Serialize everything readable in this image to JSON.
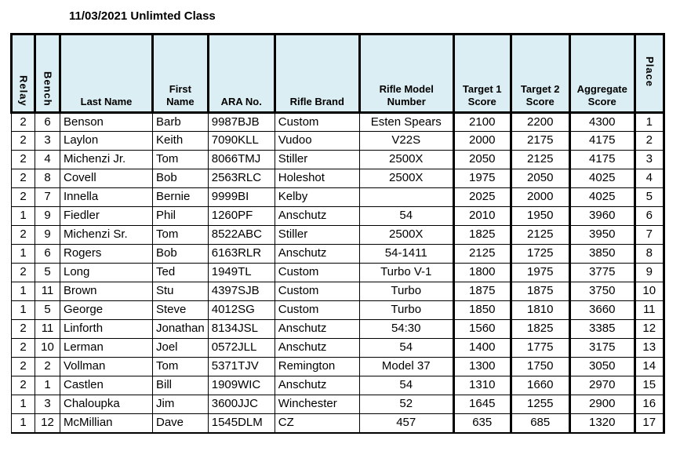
{
  "title": "11/03/2021 Unlimted Class",
  "colors": {
    "header_bg": "#daeef3",
    "border": "#000000",
    "text": "#000000",
    "page_bg": "#ffffff"
  },
  "chart_data": {
    "type": "table",
    "title": "11/03/2021 Unlimted Class",
    "columns": [
      "Relay",
      "Bench",
      "Last Name",
      "First\nName",
      "ARA No.",
      "Rifle Brand",
      "Rifle Model\nNumber",
      "Target 1\nScore",
      "Target 2\nScore",
      "Aggregate\nScore",
      "Place"
    ],
    "rows": [
      [
        "2",
        "6",
        "Benson",
        "Barb",
        "9987BJB",
        "Custom",
        "Esten Spears",
        "2100",
        "2200",
        "4300",
        "1"
      ],
      [
        "2",
        "3",
        "Laylon",
        "Keith",
        "7090KLL",
        "Vudoo",
        "V22S",
        "2000",
        "2175",
        "4175",
        "2"
      ],
      [
        "2",
        "4",
        "Michenzi Jr.",
        "Tom",
        "8066TMJ",
        "Stiller",
        "2500X",
        "2050",
        "2125",
        "4175",
        "3"
      ],
      [
        "2",
        "8",
        "Covell",
        "Bob",
        "2563RLC",
        "Holeshot",
        "2500X",
        "1975",
        "2050",
        "4025",
        "4"
      ],
      [
        "2",
        "7",
        "Innella",
        "Bernie",
        "9999BI",
        "Kelby",
        "",
        "2025",
        "2000",
        "4025",
        "5"
      ],
      [
        "1",
        "9",
        "Fiedler",
        "Phil",
        "1260PF",
        "Anschutz",
        "54",
        "2010",
        "1950",
        "3960",
        "6"
      ],
      [
        "2",
        "9",
        "Michenzi Sr.",
        "Tom",
        "8522ABC",
        "Stiller",
        "2500X",
        "1825",
        "2125",
        "3950",
        "7"
      ],
      [
        "1",
        "6",
        "Rogers",
        "Bob",
        "6163RLR",
        "Anschutz",
        "54-1411",
        "2125",
        "1725",
        "3850",
        "8"
      ],
      [
        "2",
        "5",
        "Long",
        "Ted",
        "1949TL",
        "Custom",
        "Turbo V-1",
        "1800",
        "1975",
        "3775",
        "9"
      ],
      [
        "1",
        "11",
        "Brown",
        "Stu",
        "4397SJB",
        "Custom",
        "Turbo",
        "1875",
        "1875",
        "3750",
        "10"
      ],
      [
        "1",
        "5",
        "George",
        "Steve",
        "4012SG",
        "Custom",
        "Turbo",
        "1850",
        "1810",
        "3660",
        "11"
      ],
      [
        "2",
        "11",
        "Linforth",
        "Jonathan",
        "8134JSL",
        "Anschutz",
        "54:30",
        "1560",
        "1825",
        "3385",
        "12"
      ],
      [
        "2",
        "10",
        "Lerman",
        "Joel",
        "0572JLL",
        "Anschutz",
        "54",
        "1400",
        "1775",
        "3175",
        "13"
      ],
      [
        "2",
        "2",
        "Vollman",
        "Tom",
        "5371TJV",
        "Remington",
        "Model 37",
        "1300",
        "1750",
        "3050",
        "14"
      ],
      [
        "2",
        "1",
        "Castlen",
        "Bill",
        "1909WIC",
        "Anschutz",
        "54",
        "1310",
        "1660",
        "2970",
        "15"
      ],
      [
        "1",
        "3",
        "Chaloupka",
        "Jim",
        "3600JJC",
        "Winchester",
        "52",
        "1645",
        "1255",
        "2900",
        "16"
      ],
      [
        "1",
        "12",
        "McMillian",
        "Dave",
        "1545DLM",
        "CZ",
        "457",
        "635",
        "685",
        "1320",
        "17"
      ]
    ]
  }
}
